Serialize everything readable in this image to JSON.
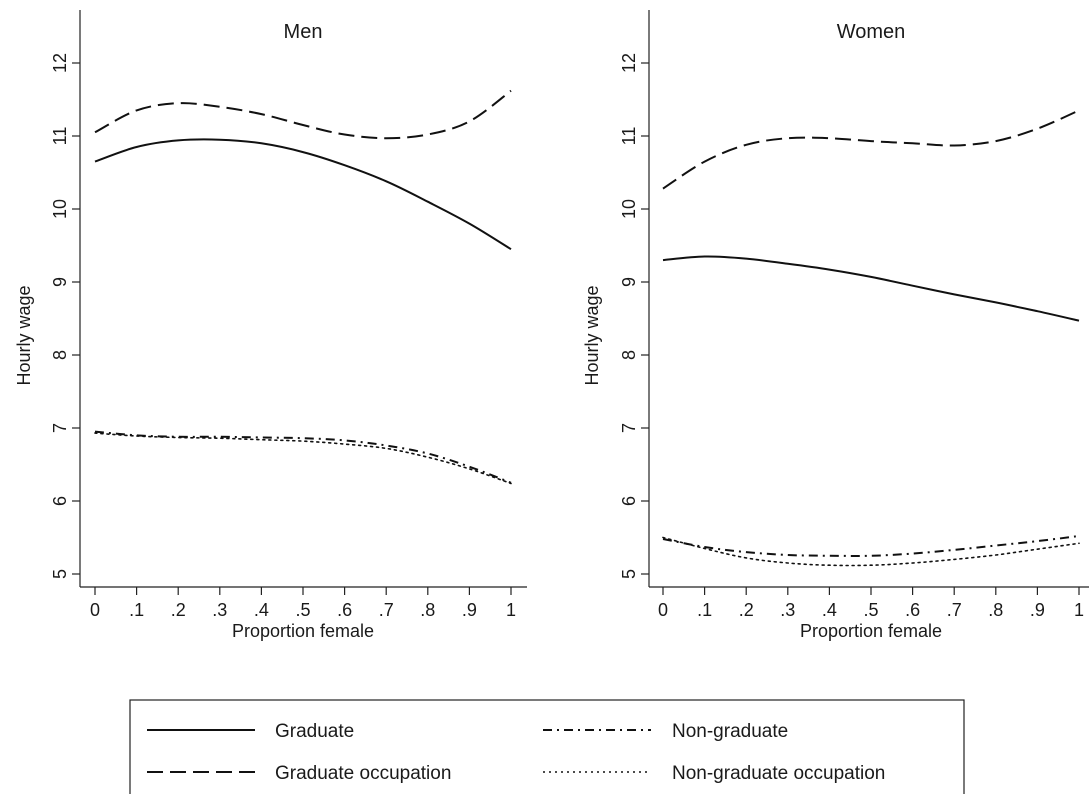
{
  "chart_data": {
    "type": "line",
    "panels": [
      {
        "title": "Men",
        "xlabel": "Proportion female",
        "ylabel": "Hourly wage",
        "xlim": [
          0,
          1
        ],
        "ylim": [
          5,
          12
        ],
        "xticks": [
          "0",
          ".1",
          ".2",
          ".3",
          ".4",
          ".5",
          ".6",
          ".7",
          ".8",
          ".9",
          "1"
        ],
        "yticks": [
          "5",
          "6",
          "7",
          "8",
          "9",
          "10",
          "11",
          "12"
        ],
        "x": [
          0,
          0.1,
          0.2,
          0.3,
          0.4,
          0.5,
          0.6,
          0.7,
          0.8,
          0.9,
          1.0
        ],
        "series": [
          {
            "name": "Graduate",
            "style": "solid",
            "values": [
              10.65,
              10.85,
              10.94,
              10.95,
              10.9,
              10.78,
              10.6,
              10.38,
              10.1,
              9.8,
              9.45
            ]
          },
          {
            "name": "Graduate occupation",
            "style": "dashed",
            "values": [
              11.05,
              11.35,
              11.45,
              11.4,
              11.3,
              11.15,
              11.02,
              10.97,
              11.02,
              11.2,
              11.62
            ]
          },
          {
            "name": "Non-graduate",
            "style": "dashdot",
            "values": [
              6.95,
              6.9,
              6.88,
              6.88,
              6.87,
              6.86,
              6.83,
              6.76,
              6.65,
              6.47,
              6.25
            ]
          },
          {
            "name": "Non-graduate occupation",
            "style": "dotted",
            "values": [
              6.93,
              6.89,
              6.87,
              6.86,
              6.84,
              6.82,
              6.78,
              6.72,
              6.6,
              6.44,
              6.24
            ]
          }
        ]
      },
      {
        "title": "Women",
        "xlabel": "Proportion female",
        "ylabel": "Hourly wage",
        "xlim": [
          0,
          1
        ],
        "ylim": [
          5,
          12
        ],
        "xticks": [
          "0",
          ".1",
          ".2",
          ".3",
          ".4",
          ".5",
          ".6",
          ".7",
          ".8",
          ".9",
          "1"
        ],
        "yticks": [
          "5",
          "6",
          "7",
          "8",
          "9",
          "10",
          "11",
          "12"
        ],
        "x": [
          0,
          0.1,
          0.2,
          0.3,
          0.4,
          0.5,
          0.6,
          0.7,
          0.8,
          0.9,
          1.0
        ],
        "series": [
          {
            "name": "Graduate",
            "style": "solid",
            "values": [
              9.3,
              9.35,
              9.32,
              9.25,
              9.17,
              9.07,
              8.95,
              8.83,
              8.72,
              8.6,
              8.47
            ]
          },
          {
            "name": "Graduate occupation",
            "style": "dashed",
            "values": [
              10.28,
              10.65,
              10.88,
              10.97,
              10.97,
              10.93,
              10.9,
              10.87,
              10.93,
              11.1,
              11.35
            ]
          },
          {
            "name": "Non-graduate",
            "style": "dashdot",
            "values": [
              5.48,
              5.37,
              5.3,
              5.26,
              5.25,
              5.25,
              5.28,
              5.33,
              5.39,
              5.45,
              5.52
            ]
          },
          {
            "name": "Non-graduate occupation",
            "style": "dotted",
            "values": [
              5.5,
              5.35,
              5.22,
              5.15,
              5.12,
              5.12,
              5.15,
              5.2,
              5.26,
              5.34,
              5.42
            ]
          }
        ]
      }
    ],
    "legend": {
      "placement": "bottom",
      "entries": [
        "Graduate",
        "Graduate occupation",
        "Non-graduate",
        "Non-graduate occupation"
      ]
    },
    "grid": false
  }
}
